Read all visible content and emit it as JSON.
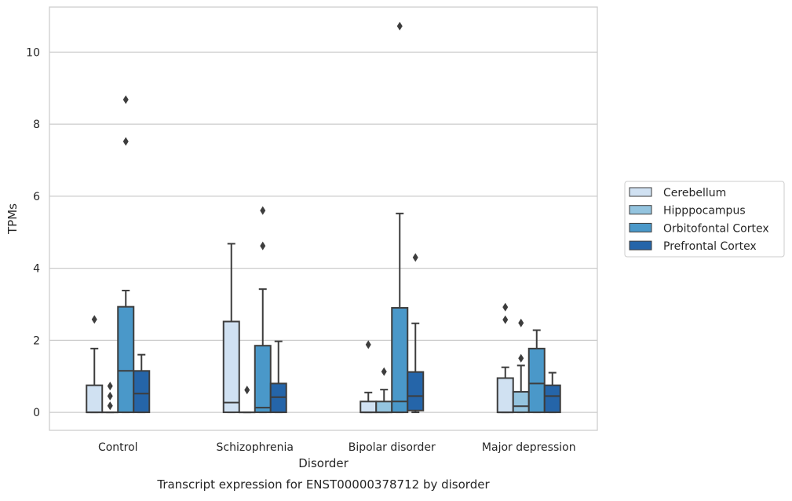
{
  "caption": "Transcript expression for ENST00000378712 by disorder",
  "chart_data": {
    "type": "box",
    "xlabel": "Disorder",
    "ylabel": "TPMs",
    "ylim": [
      -0.5,
      11.25
    ],
    "yticks": [
      0,
      2,
      4,
      6,
      8,
      10
    ],
    "grid": true,
    "legend_position": "right",
    "categories": [
      "Control",
      "Schizophrenia",
      "Bipolar disorder",
      "Major depression"
    ],
    "series": [
      {
        "name": "Cerebellum",
        "color": "#d0e1f2",
        "boxes": [
          {
            "whisker_low": 0,
            "q1": 0,
            "median": 0,
            "q3": 0.75,
            "whisker_high": 1.77,
            "outliers": [
              2.58
            ]
          },
          {
            "whisker_low": 0,
            "q1": 0,
            "median": 0.27,
            "q3": 2.52,
            "whisker_high": 4.68,
            "outliers": []
          },
          {
            "whisker_low": 0,
            "q1": 0,
            "median": 0,
            "q3": 0.3,
            "whisker_high": 0.55,
            "outliers": [
              1.88
            ]
          },
          {
            "whisker_low": 0,
            "q1": 0,
            "median": 0,
            "q3": 0.95,
            "whisker_high": 1.25,
            "outliers": [
              2.57,
              2.92
            ]
          }
        ]
      },
      {
        "name": "Hipppocampus",
        "color": "#94c4df",
        "boxes": [
          {
            "whisker_low": 0,
            "q1": 0,
            "median": 0,
            "q3": 0,
            "whisker_high": 0,
            "outliers": [
              0.18,
              0.45,
              0.73
            ]
          },
          {
            "whisker_low": 0,
            "q1": 0,
            "median": 0,
            "q3": 0,
            "whisker_high": 0,
            "outliers": [
              0.62
            ]
          },
          {
            "whisker_low": 0,
            "q1": 0,
            "median": 0,
            "q3": 0.3,
            "whisker_high": 0.63,
            "outliers": [
              1.13
            ]
          },
          {
            "whisker_low": 0,
            "q1": 0,
            "median": 0.17,
            "q3": 0.57,
            "whisker_high": 1.3,
            "outliers": [
              1.5,
              2.48
            ]
          }
        ]
      },
      {
        "name": "Orbitofontal Cortex",
        "color": "#4a98c9",
        "boxes": [
          {
            "whisker_low": 0,
            "q1": 0,
            "median": 1.15,
            "q3": 2.93,
            "whisker_high": 3.38,
            "outliers": [
              7.52,
              8.68
            ]
          },
          {
            "whisker_low": 0,
            "q1": 0,
            "median": 0.13,
            "q3": 1.85,
            "whisker_high": 3.42,
            "outliers": [
              4.62,
              5.6
            ]
          },
          {
            "whisker_low": 0,
            "q1": 0,
            "median": 0.3,
            "q3": 2.9,
            "whisker_high": 5.52,
            "outliers": [
              10.72
            ]
          },
          {
            "whisker_low": 0,
            "q1": 0,
            "median": 0.8,
            "q3": 1.77,
            "whisker_high": 2.28,
            "outliers": []
          }
        ]
      },
      {
        "name": "Prefrontal Cortex",
        "color": "#2565a9",
        "boxes": [
          {
            "whisker_low": 0,
            "q1": 0,
            "median": 0.52,
            "q3": 1.15,
            "whisker_high": 1.6,
            "outliers": []
          },
          {
            "whisker_low": 0,
            "q1": 0,
            "median": 0.42,
            "q3": 0.8,
            "whisker_high": 1.97,
            "outliers": []
          },
          {
            "whisker_low": 0,
            "q1": 0.05,
            "median": 0.45,
            "q3": 1.12,
            "whisker_high": 2.47,
            "outliers": [
              4.3
            ]
          },
          {
            "whisker_low": 0,
            "q1": 0,
            "median": 0.45,
            "q3": 0.75,
            "whisker_high": 1.1,
            "outliers": []
          }
        ]
      }
    ]
  }
}
